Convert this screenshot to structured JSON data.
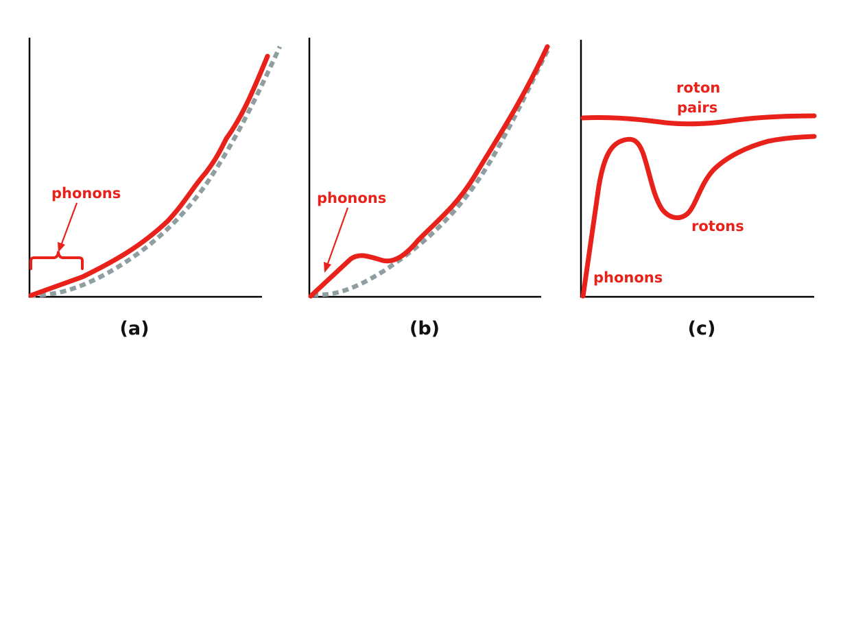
{
  "panels": {
    "a": {
      "caption": "(a)",
      "annotation": "phonons"
    },
    "b": {
      "caption": "(b)",
      "annotation": "phonons"
    },
    "c": {
      "caption": "(c)",
      "annotation_phonons": "phonons",
      "annotation_rotons": "rotons",
      "annotation_roton_pairs_line1": "roton",
      "annotation_roton_pairs_line2": "pairs"
    }
  },
  "colors": {
    "curve": "#e8221b",
    "free_particle_dotted": "#8e9ea1",
    "axes": "#000000",
    "caption_text": "#111111"
  }
}
